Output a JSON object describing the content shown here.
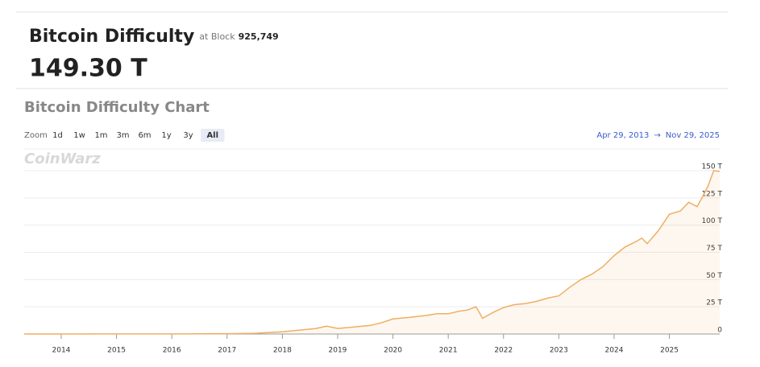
{
  "header": {
    "title": "Bitcoin Difficulty",
    "block_label": "at Block",
    "block": "925,749",
    "value": "149.30 T"
  },
  "chart_heading": "Bitcoin Difficulty Chart",
  "zoom": {
    "label": "Zoom",
    "buttons": [
      "1d",
      "1w",
      "1m",
      "3m",
      "6m",
      "1y",
      "3y",
      "All"
    ],
    "active": 7
  },
  "range": {
    "from": "Apr 29, 2013",
    "separator": "→",
    "to": "Nov 29, 2025"
  },
  "watermark": "CoinWarz",
  "chart_data": {
    "type": "line",
    "x": [
      2013.33,
      2014,
      2015,
      2016,
      2016.5,
      2017,
      2017.5,
      2018,
      2018.3,
      2018.6,
      2018.8,
      2019,
      2019.3,
      2019.6,
      2019.8,
      2020,
      2020.3,
      2020.4,
      2020.6,
      2020.8,
      2021,
      2021.2,
      2021.35,
      2021.5,
      2021.55,
      2021.62,
      2021.8,
      2022,
      2022.2,
      2022.4,
      2022.6,
      2022.8,
      2023,
      2023.2,
      2023.4,
      2023.6,
      2023.8,
      2024,
      2024.2,
      2024.4,
      2024.5,
      2024.6,
      2024.8,
      2025,
      2025.2,
      2025.35,
      2025.5,
      2025.6,
      2025.7,
      2025.8,
      2025.91
    ],
    "series": [
      {
        "name": "Difficulty",
        "color": "#efae63",
        "values": [
          0.01,
          0.002,
          0.04,
          0.1,
          0.2,
          0.3,
          0.7,
          2,
          3.5,
          5,
          7.2,
          5.1,
          6.5,
          7.9,
          10.5,
          13.8,
          15.2,
          15.9,
          17,
          18.7,
          18.6,
          21,
          22,
          25,
          21,
          14.4,
          19.5,
          24.3,
          27,
          28,
          30,
          33,
          35,
          43,
          50,
          55,
          62,
          72,
          80,
          85,
          88,
          83,
          95,
          110,
          113,
          121,
          117,
          126,
          136,
          150,
          149.3
        ]
      }
    ],
    "xlim": [
      2013.33,
      2025.91
    ],
    "xticks": [
      2014,
      2015,
      2016,
      2017,
      2018,
      2019,
      2020,
      2021,
      2022,
      2023,
      2024,
      2025
    ],
    "ylim": [
      0,
      170
    ],
    "yticks": [
      0,
      {
        "value": 25,
        "label": "25 T"
      },
      {
        "value": 50,
        "label": "50 T"
      },
      {
        "value": 75,
        "label": "75 T"
      },
      {
        "value": 100,
        "label": "100 T"
      },
      {
        "value": 125,
        "label": "125 T"
      },
      {
        "value": 150,
        "label": "150 T"
      }
    ],
    "grid": true
  }
}
